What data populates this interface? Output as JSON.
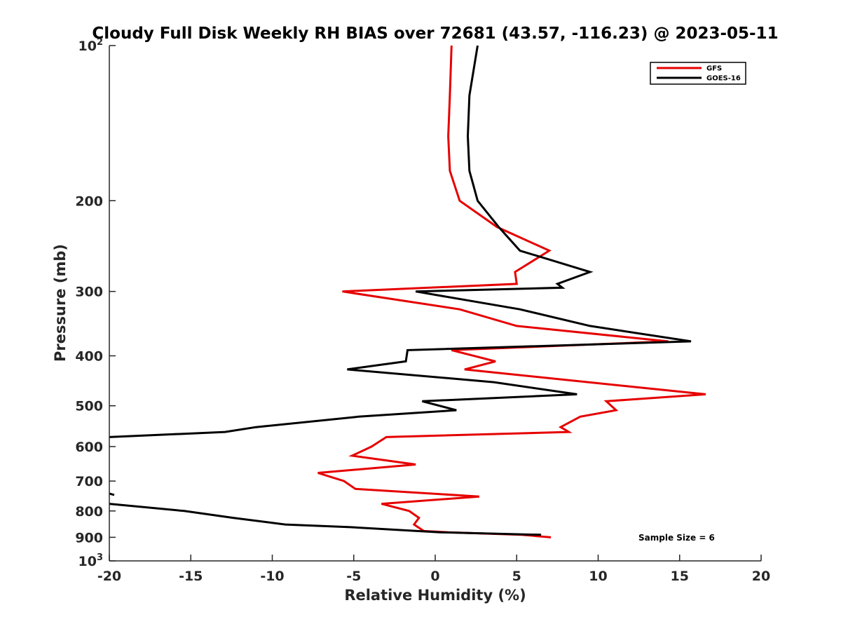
{
  "chart_data": {
    "type": "line",
    "title": "Cloudy Full Disk Weekly RH BIAS over 72681 (43.57, -116.23) @ 2023-05-11",
    "xlabel": "Relative Humidity (%)",
    "ylabel": "Pressure (mb)",
    "xlim": [
      -20,
      20
    ],
    "ylim": [
      100,
      1000
    ],
    "yscale": "log",
    "y_reversed": true,
    "grid": false,
    "legend_position": "top-right",
    "xticks": [
      -20,
      -15,
      -10,
      -5,
      0,
      5,
      10,
      15,
      20
    ],
    "xtick_labels": [
      "-20",
      "-15",
      "-10",
      "-5",
      "0",
      "5",
      "10",
      "15",
      "20"
    ],
    "yticks": [
      100,
      200,
      300,
      400,
      500,
      600,
      700,
      800,
      900,
      1000
    ],
    "ytick_labels": [
      {
        "base": "10",
        "exp": "2"
      },
      {
        "base": "200",
        "exp": ""
      },
      {
        "base": "300",
        "exp": ""
      },
      {
        "base": "400",
        "exp": ""
      },
      {
        "base": "500",
        "exp": ""
      },
      {
        "base": "600",
        "exp": ""
      },
      {
        "base": "700",
        "exp": ""
      },
      {
        "base": "800",
        "exp": ""
      },
      {
        "base": "900",
        "exp": ""
      },
      {
        "base": "10",
        "exp": "3"
      }
    ],
    "series": [
      {
        "name": "GFS",
        "color": "#e60000",
        "points": [
          [
            1.0,
            100
          ],
          [
            0.9,
            125
          ],
          [
            0.8,
            150
          ],
          [
            0.9,
            175
          ],
          [
            1.5,
            200
          ],
          [
            3.8,
            225
          ],
          [
            7.0,
            250
          ],
          [
            4.9,
            275
          ],
          [
            5.0,
            290
          ],
          [
            -5.7,
            300
          ],
          [
            1.5,
            325
          ],
          [
            5.0,
            350
          ],
          [
            14.3,
            375
          ],
          [
            1.0,
            390
          ],
          [
            3.7,
            410
          ],
          [
            1.8,
            425
          ],
          [
            16.6,
            475
          ],
          [
            10.5,
            490
          ],
          [
            11.1,
            510
          ],
          [
            8.9,
            525
          ],
          [
            7.7,
            550
          ],
          [
            8.2,
            562
          ],
          [
            -3.0,
            575
          ],
          [
            -3.9,
            600
          ],
          [
            -5.1,
            625
          ],
          [
            -1.2,
            650
          ],
          [
            -7.2,
            675
          ],
          [
            -5.6,
            700
          ],
          [
            -4.9,
            725
          ],
          [
            2.7,
            750
          ],
          [
            -3.3,
            775
          ],
          [
            -1.6,
            800
          ],
          [
            -1.0,
            825
          ],
          [
            -1.3,
            850
          ],
          [
            -0.7,
            875
          ],
          [
            0.8,
            880
          ],
          [
            5.3,
            890
          ],
          [
            7.1,
            900
          ]
        ]
      },
      {
        "name": "GOES-16",
        "color": "#000000",
        "points": [
          [
            2.6,
            100
          ],
          [
            2.1,
            125
          ],
          [
            2.0,
            150
          ],
          [
            2.1,
            175
          ],
          [
            2.6,
            200
          ],
          [
            3.9,
            225
          ],
          [
            5.2,
            250
          ],
          [
            9.5,
            275
          ],
          [
            7.5,
            290
          ],
          [
            7.8,
            295
          ],
          [
            -1.2,
            300
          ],
          [
            5.2,
            325
          ],
          [
            9.5,
            350
          ],
          [
            15.7,
            375
          ],
          [
            -1.7,
            390
          ],
          [
            -1.8,
            410
          ],
          [
            -5.4,
            425
          ],
          [
            3.6,
            450
          ],
          [
            8.7,
            475
          ],
          [
            -0.8,
            490
          ],
          [
            1.3,
            510
          ],
          [
            -4.7,
            525
          ],
          [
            -11.0,
            550
          ],
          [
            -12.9,
            562
          ],
          [
            -20,
            575
          ],
          null,
          [
            -20,
            740
          ],
          [
            -19.7,
            745
          ],
          null,
          [
            -20,
            775
          ],
          [
            -15.4,
            800
          ],
          [
            -12.4,
            825
          ],
          [
            -9.2,
            850
          ],
          [
            -5.2,
            860
          ],
          [
            0.3,
            880
          ],
          [
            6.5,
            890
          ]
        ]
      }
    ],
    "legend": [
      {
        "label": "GFS",
        "color": "#e60000"
      },
      {
        "label": "GOES-16",
        "color": "#000000"
      }
    ],
    "annotation": "Sample Size = 6"
  }
}
